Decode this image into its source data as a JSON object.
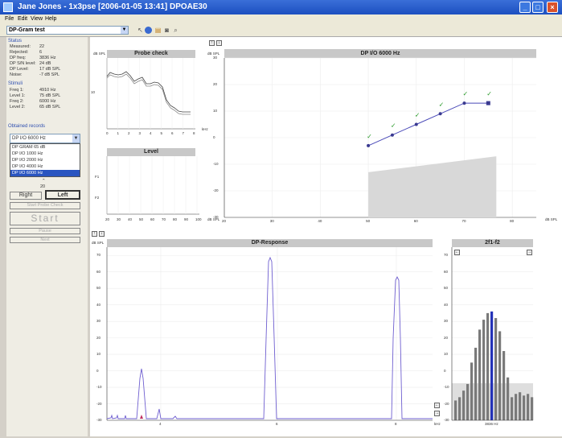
{
  "window": {
    "title": "Jane Jones - 1x3pse [2006-01-05 13:41] DPOAE30",
    "icon": "app-icon"
  },
  "menu": [
    "File",
    "Edit",
    "View",
    "Help"
  ],
  "toolbar": {
    "test_combo": "DP-Gram test",
    "icons": [
      "arrow-icon",
      "ear-icon",
      "print-icon",
      "chart-icon",
      "zoom-icon"
    ]
  },
  "left_panel": {
    "status_header": "Status",
    "status": [
      {
        "k": "Measured:",
        "v": "22"
      },
      {
        "k": "Rejected:",
        "v": "6"
      },
      {
        "k": "DP freq:",
        "v": "3836 Hz"
      },
      {
        "k": "DP S/N level:",
        "v": "24 dB"
      },
      {
        "k": "DP Level:",
        "v": "17 dB SPL"
      },
      {
        "k": "Noise:",
        "v": "-7 dB SPL"
      }
    ],
    "stimuli_header": "Stimuli",
    "stimuli": [
      {
        "k": "Freq 1:",
        "v": "4910 Hz"
      },
      {
        "k": "Level 1:",
        "v": "75 dB SPL"
      },
      {
        "k": "Freq 2:",
        "v": "6000 Hz"
      },
      {
        "k": "Level 2:",
        "v": "65 dB SPL"
      }
    ],
    "records_header": "Obtained records",
    "selected_record": "DP I/O 6000 Hz",
    "records": [
      "DP GRAM 65 dB",
      "DP I/O 1000 Hz",
      "DP I/O 2000 Hz",
      "DP I/O 4000 Hz",
      "DP I/O 6000 Hz"
    ],
    "stepper_value": "20",
    "right_button": "Right",
    "left_button": "Left",
    "probe_button": "Start Probe Check",
    "start_button": "Start",
    "pause_button": "Pause",
    "next_button": "Next"
  },
  "probe_check": {
    "title": "Probe check",
    "y_unit": "dB SPL",
    "x_unit": "kHz",
    "ytick": "10",
    "xticks": [
      "0",
      "1",
      "2",
      "3",
      "4",
      "5",
      "6",
      "7",
      "8"
    ]
  },
  "level": {
    "title": "Level",
    "rows": [
      "F1",
      "F2"
    ],
    "x_unit": "dB SPL",
    "xticks": [
      "20",
      "30",
      "40",
      "50",
      "60",
      "70",
      "80",
      "90",
      "100"
    ]
  },
  "dpio": {
    "title": "DP I/O 6000 Hz",
    "y_unit": "dB SPL",
    "x_unit": "dB SPL",
    "xticks": [
      "20",
      "30",
      "40",
      "50",
      "60",
      "70",
      "80"
    ],
    "yticks": [
      "30",
      "20",
      "10",
      "0",
      "-10",
      "-20",
      "-30"
    ],
    "check": "✓"
  },
  "dp_response": {
    "title": "DP-Response",
    "y_unit": "dB SPL",
    "x_unit": "kHz",
    "yticks": [
      "70",
      "60",
      "50",
      "40",
      "30",
      "20",
      "10",
      "0",
      "-10",
      "-20",
      "-30"
    ],
    "xticks": [
      "4",
      "6",
      "8"
    ]
  },
  "f2f1": {
    "title": "2f1-f2",
    "x_label": "3836 Hz",
    "yticks": [
      "70",
      "60",
      "50",
      "40",
      "30",
      "20",
      "10",
      "0",
      "-10",
      "-20",
      "-30"
    ]
  },
  "chart_data": [
    {
      "type": "line",
      "title": "Probe check",
      "series": [
        {
          "values": [
            40,
            44,
            45,
            42,
            44,
            40,
            38,
            30,
            20,
            18,
            19
          ]
        },
        {
          "values": [
            39,
            42,
            43,
            40,
            42,
            38,
            36,
            28,
            18,
            16,
            17
          ]
        }
      ]
    },
    {
      "type": "line",
      "title": "DP I/O 6000 Hz",
      "x": [
        50,
        55,
        60,
        65,
        70,
        75
      ],
      "y": [
        -3,
        1,
        5,
        9,
        13,
        13
      ],
      "noise_floor_start": -13,
      "noise_floor_end": -7
    },
    {
      "type": "line",
      "title": "DP-Response",
      "peaks": [
        {
          "x": 3.84,
          "y": 17
        },
        {
          "x": 4.91,
          "y": 75
        },
        {
          "x": 6.0,
          "y": 65
        }
      ]
    },
    {
      "type": "bar",
      "title": "2f1-f2",
      "values": [
        -18,
        -16,
        -12,
        -8,
        5,
        14,
        25,
        31,
        35,
        36,
        32,
        24,
        12,
        -4,
        -16,
        -14,
        -13,
        -15,
        -14,
        -16
      ]
    }
  ]
}
